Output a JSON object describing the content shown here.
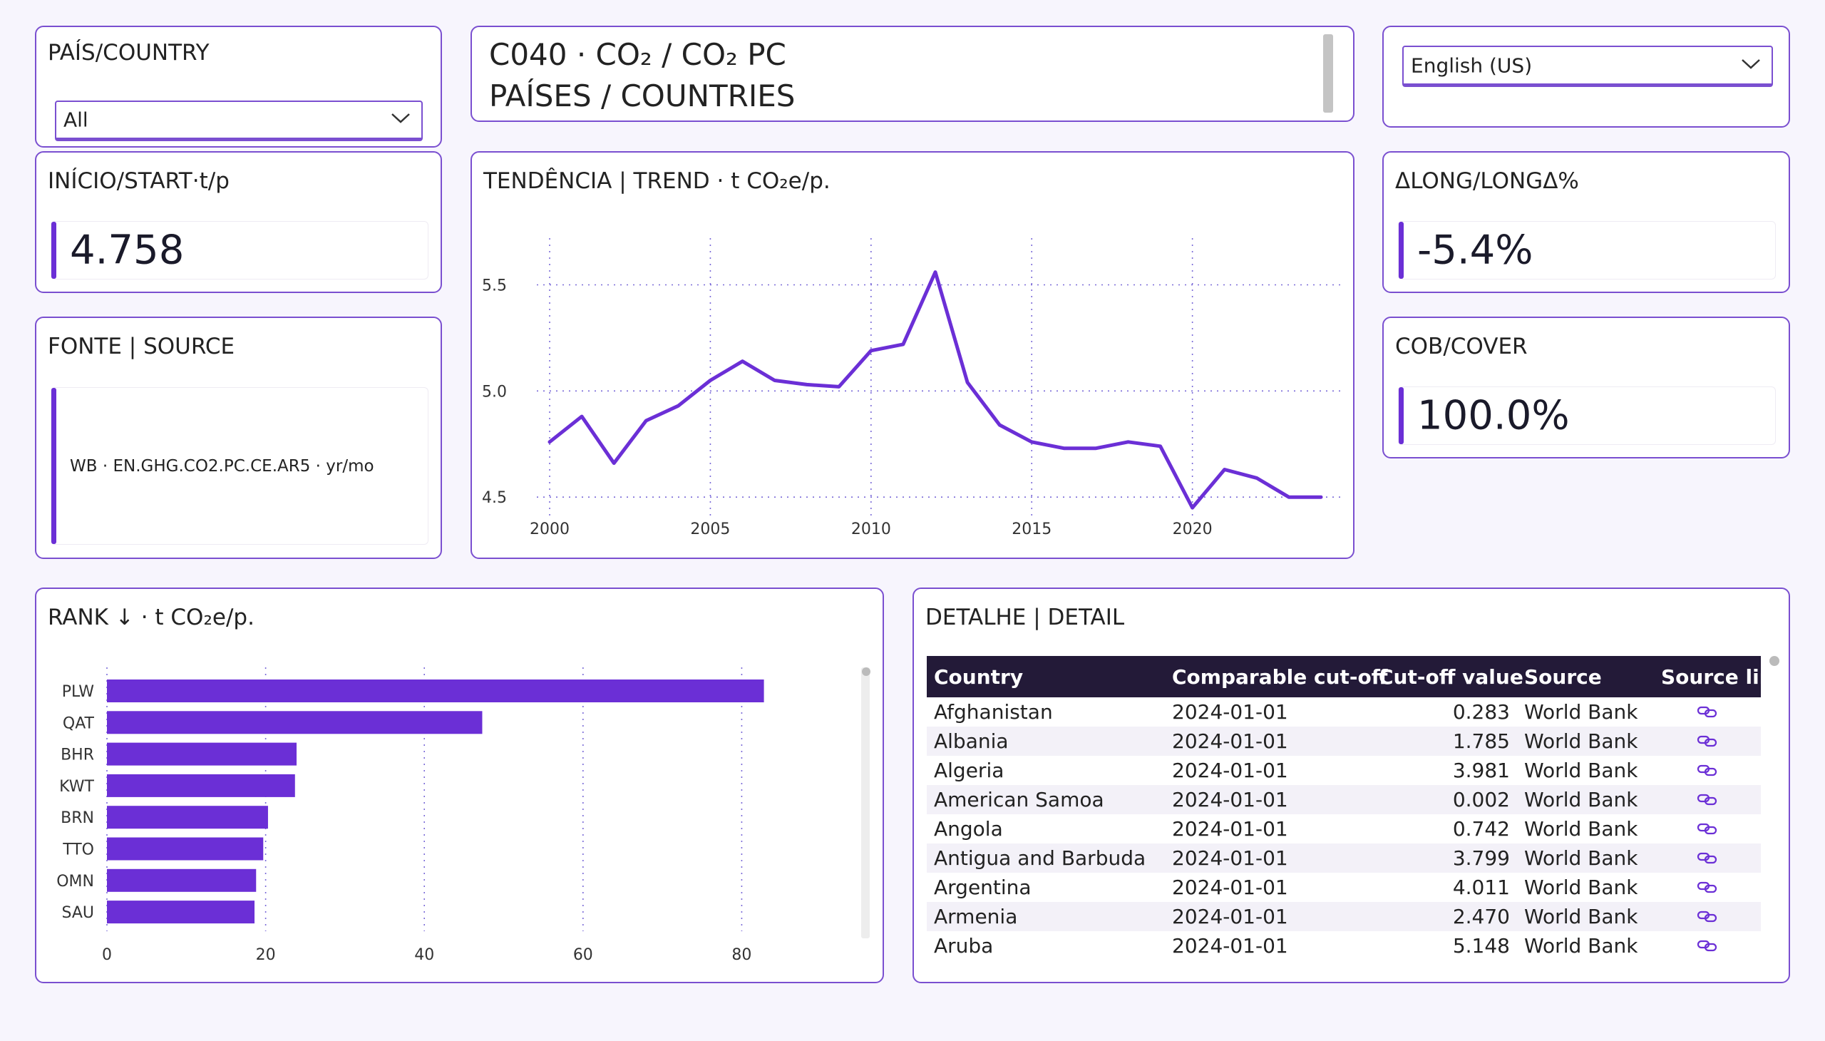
{
  "filters": {
    "country": {
      "label": "PAÍS/COUNTRY",
      "selected": "All"
    },
    "language": {
      "selected": "English (US)"
    }
  },
  "header": {
    "title_line1": "C040 · CO₂ / CO₂ PC",
    "title_line2": "PAÍSES / COUNTRIES"
  },
  "kpis": {
    "start": {
      "label": "INÍCIO/START·t/p",
      "value": "4.758"
    },
    "delta": {
      "label": "ΔLONG/LONGΔ%",
      "value": "-5.4%"
    },
    "cover": {
      "label": "COB/COVER",
      "value": "100.0%"
    }
  },
  "source": {
    "label": "FONTE | SOURCE",
    "text": "WB · EN.GHG.CO2.PC.CE.AR5 · yr/mo"
  },
  "trend": {
    "title": "TENDÊNCIA | TREND · t CO₂e/p."
  },
  "rank": {
    "title": "RANK ↓ · t CO₂e/p."
  },
  "detail": {
    "title": "DETALHE | DETAIL",
    "columns": [
      "Country",
      "Comparable cut-off",
      "Cut-off value",
      "Source",
      "Source link"
    ],
    "rows": [
      {
        "country": "Afghanistan",
        "cutoff": "2024-01-01",
        "value": "0.283",
        "source": "World Bank"
      },
      {
        "country": "Albania",
        "cutoff": "2024-01-01",
        "value": "1.785",
        "source": "World Bank"
      },
      {
        "country": "Algeria",
        "cutoff": "2024-01-01",
        "value": "3.981",
        "source": "World Bank"
      },
      {
        "country": "American Samoa",
        "cutoff": "2024-01-01",
        "value": "0.002",
        "source": "World Bank"
      },
      {
        "country": "Angola",
        "cutoff": "2024-01-01",
        "value": "0.742",
        "source": "World Bank"
      },
      {
        "country": "Antigua and Barbuda",
        "cutoff": "2024-01-01",
        "value": "3.799",
        "source": "World Bank"
      },
      {
        "country": "Argentina",
        "cutoff": "2024-01-01",
        "value": "4.011",
        "source": "World Bank"
      },
      {
        "country": "Armenia",
        "cutoff": "2024-01-01",
        "value": "2.470",
        "source": "World Bank"
      },
      {
        "country": "Aruba",
        "cutoff": "2024-01-01",
        "value": "5.148",
        "source": "World Bank"
      }
    ],
    "link_icon": "link-icon"
  },
  "colors": {
    "accent": "#6b2fd6",
    "card_border": "#7a4fd0",
    "table_header": "#231a38",
    "background": "#f7f5fd"
  },
  "chart_data": [
    {
      "type": "line",
      "title": "TENDÊNCIA | TREND · t CO₂e/p.",
      "x": [
        2000,
        2001,
        2002,
        2003,
        2004,
        2005,
        2006,
        2007,
        2008,
        2009,
        2010,
        2011,
        2012,
        2013,
        2014,
        2015,
        2016,
        2017,
        2018,
        2019,
        2020,
        2021,
        2022,
        2023,
        2024
      ],
      "series": [
        {
          "values": [
            4.76,
            4.88,
            4.66,
            4.86,
            4.93,
            5.05,
            5.14,
            5.05,
            5.03,
            5.02,
            5.19,
            5.22,
            5.56,
            5.04,
            4.84,
            4.76,
            4.73,
            4.73,
            4.76,
            4.74,
            4.45,
            4.63,
            4.59,
            4.5,
            4.5
          ]
        }
      ],
      "xticks": [
        2000,
        2005,
        2010,
        2015,
        2020
      ],
      "yticks": [
        4.5,
        5.0,
        5.5
      ],
      "xlim": [
        1999.6,
        2024.6
      ],
      "ylim": [
        4.41,
        5.72
      ],
      "grid": true,
      "color": "#6b2fd6"
    },
    {
      "type": "bar",
      "orientation": "horizontal",
      "title": "RANK ↓ · t CO₂e/p.",
      "categories": [
        "PLW",
        "QAT",
        "BHR",
        "KWT",
        "BRN",
        "TTO",
        "OMN",
        "SAU"
      ],
      "values": [
        82.8,
        47.3,
        23.9,
        23.7,
        20.3,
        19.7,
        18.8,
        18.6
      ],
      "xticks": [
        0,
        20,
        40,
        60,
        80
      ],
      "xlim": [
        0,
        92
      ],
      "grid": true,
      "color": "#6b2fd6"
    }
  ]
}
